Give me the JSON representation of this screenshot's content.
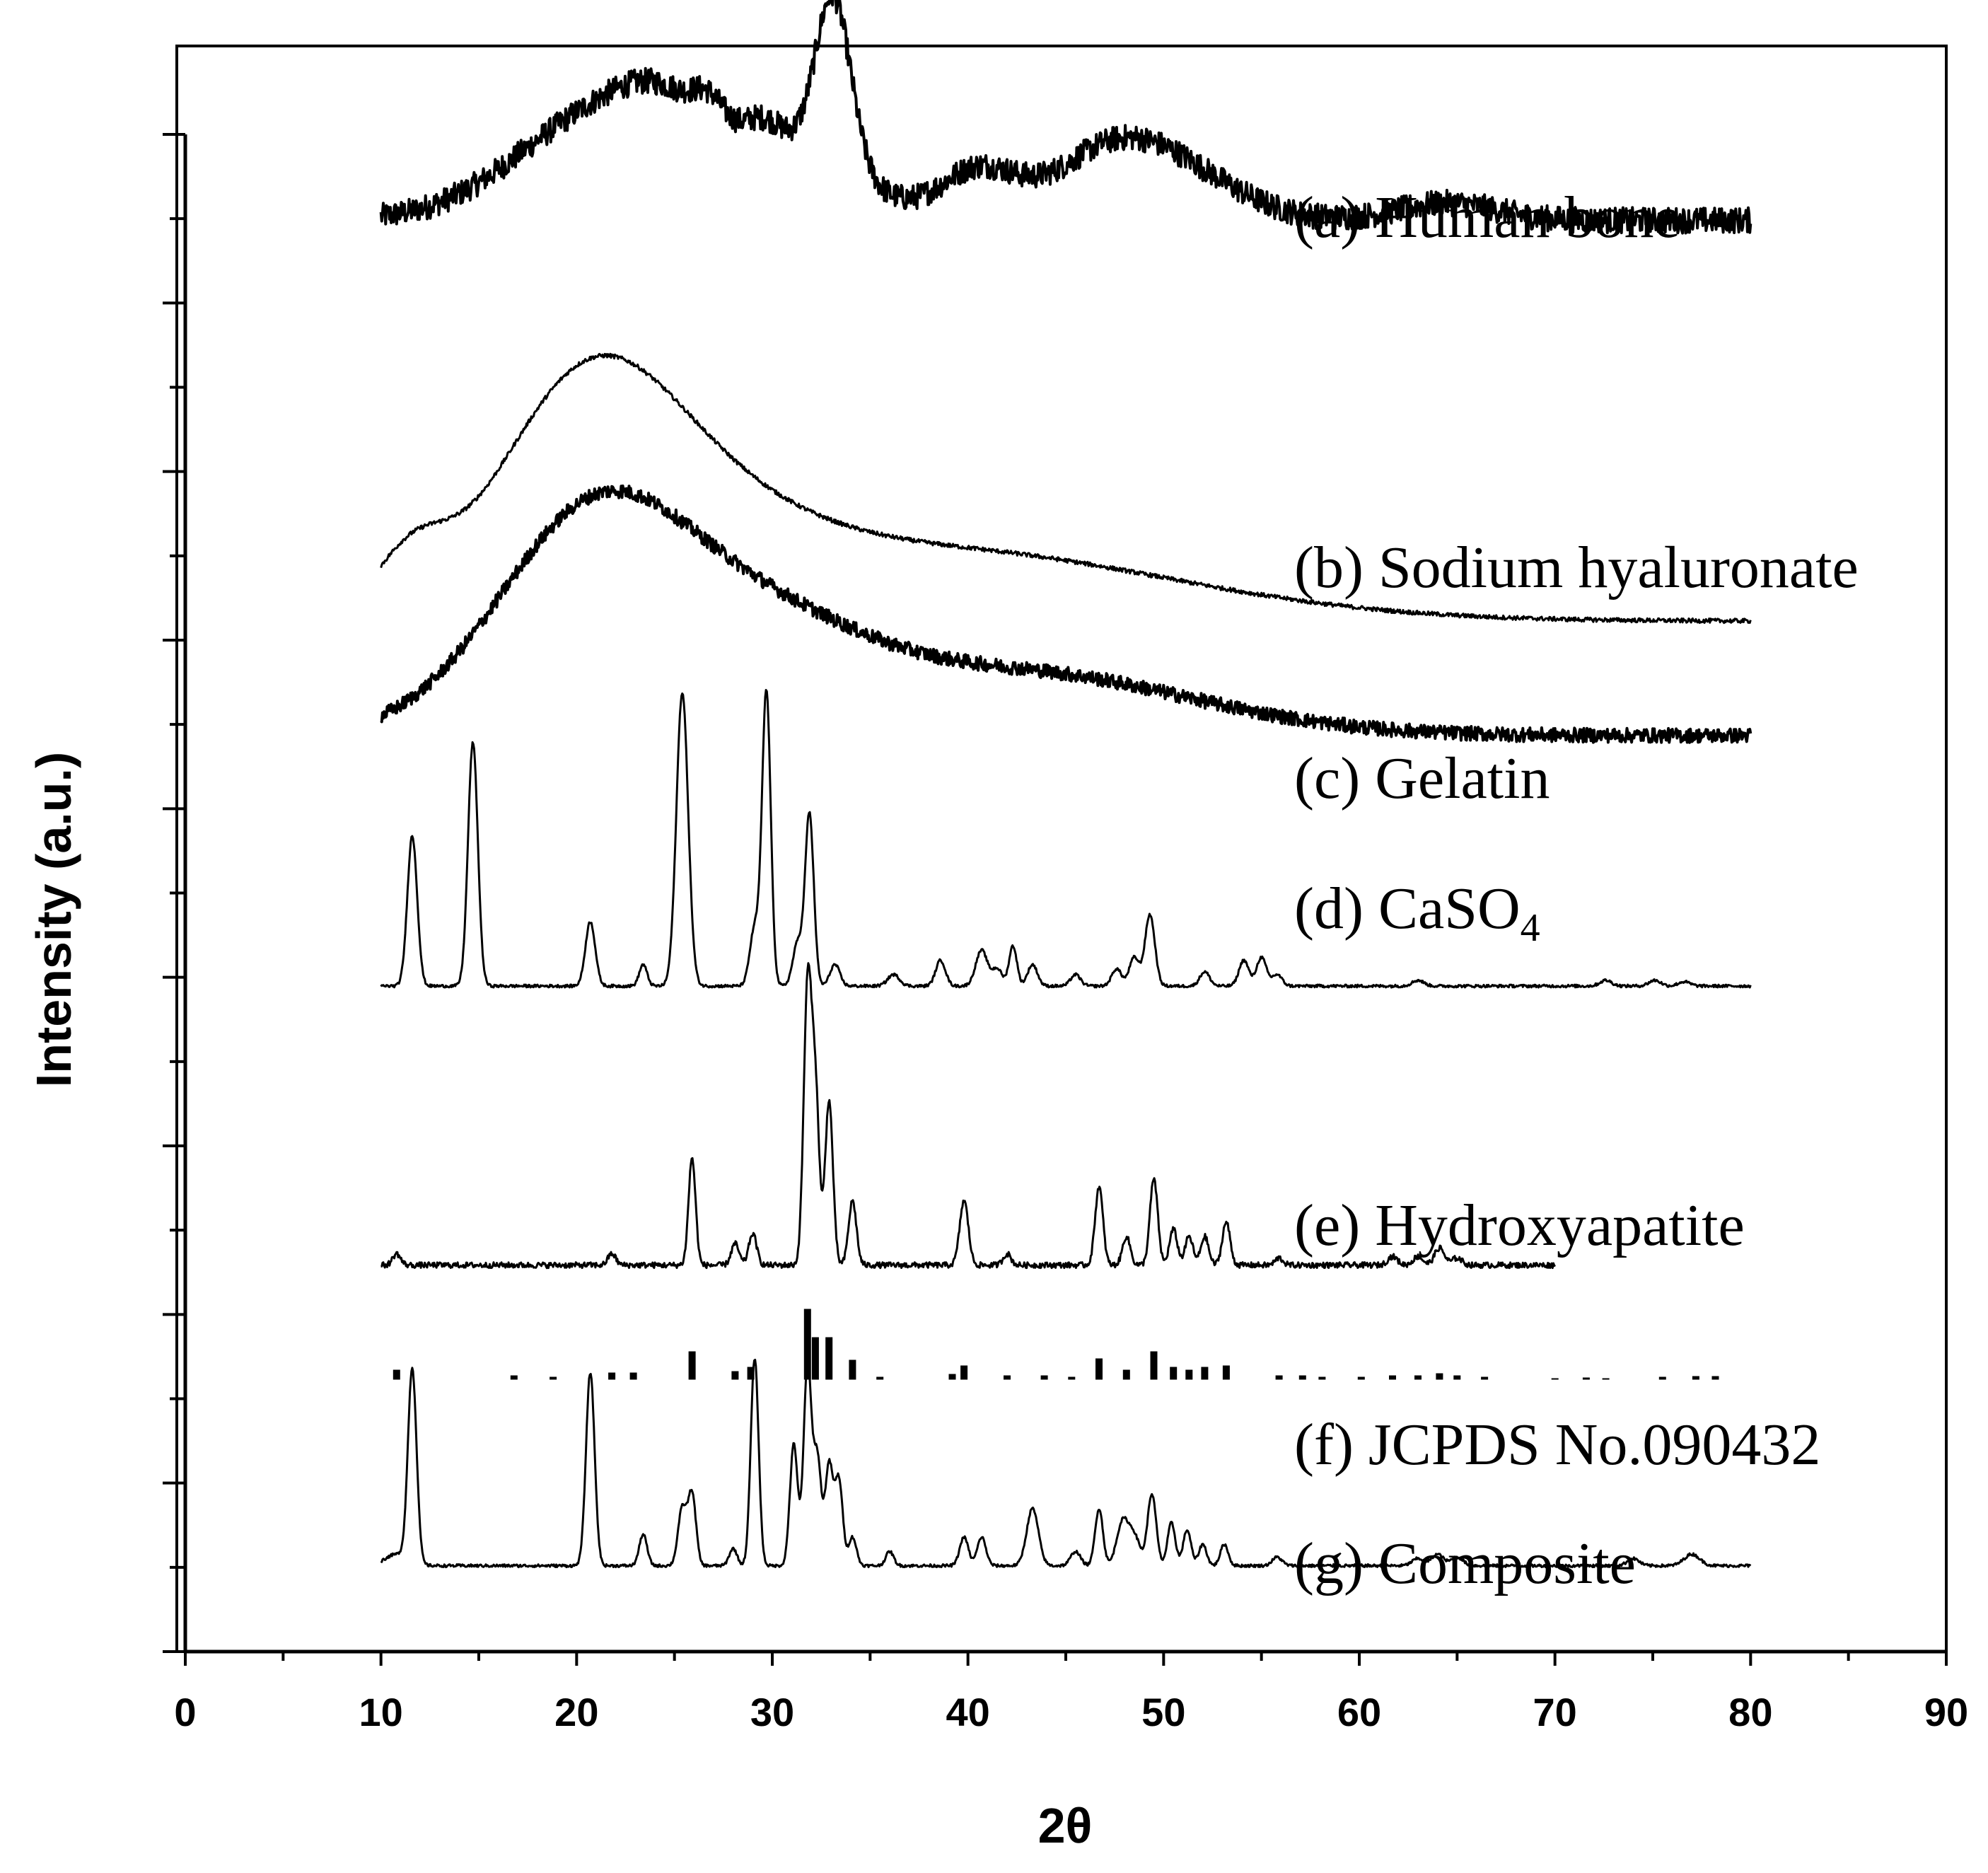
{
  "chart_data": {
    "type": "line",
    "title": "",
    "xlabel": "2θ",
    "ylabel": "Intensity (a.u.)",
    "xlim": [
      0,
      90
    ],
    "x_ticks": [
      "0",
      "10",
      "20",
      "30",
      "40",
      "50",
      "60",
      "70",
      "80",
      "90"
    ],
    "y_ticks_labeled": false,
    "grid": false,
    "series": [
      {
        "name": "(a) Human bone",
        "label_text": "(a) Human bone",
        "x_range": [
          10,
          80
        ],
        "baseline": 6.0,
        "noise": 0.09,
        "peaks": [
          [
            21.5,
            0.75,
            4.5
          ],
          [
            25,
            0.35,
            2.5
          ],
          [
            26.8,
            0.2,
            0.8
          ],
          [
            29.5,
            0.3,
            1.2
          ],
          [
            32.5,
            0.4,
            2.5
          ],
          [
            33.1,
            1.15,
            0.9
          ],
          [
            40.5,
            0.35,
            2.0
          ],
          [
            46.5,
            0.2,
            2.5
          ],
          [
            49.5,
            0.45,
            3.5
          ],
          [
            64.5,
            0.12,
            2.5
          ]
        ]
      },
      {
        "name": "(b) Sodium hyaluronate",
        "label_text": "(b) Sodium hyaluronate",
        "x_range": [
          10,
          80
        ],
        "baseline": 3.2,
        "noise": 0.015,
        "peaks": [
          [
            11.5,
            0.35,
            1.8
          ],
          [
            20.3,
            1.35,
            4.5
          ],
          [
            26,
            0.5,
            5.5
          ],
          [
            38,
            0.5,
            12
          ]
        ]
      },
      {
        "name": "(c) Gelatin",
        "label_text": "(c) Gelatin",
        "x_range": [
          10,
          80
        ],
        "baseline": 2.4,
        "noise": 0.05,
        "peaks": [
          [
            21,
            1.55,
            5.0
          ],
          [
            30,
            0.55,
            5.0
          ],
          [
            42,
            0.45,
            9.0
          ]
        ]
      },
      {
        "name": "(d) CaSO4",
        "label_prefix": "(d) CaSO",
        "label_subscript": "4",
        "x_range": [
          10,
          80
        ],
        "baseline": 0.65,
        "noise": 0.01,
        "peaks": [
          [
            11.6,
            1.05,
            0.25
          ],
          [
            14.7,
            1.7,
            0.25
          ],
          [
            20.7,
            0.45,
            0.25
          ],
          [
            23.4,
            0.15,
            0.2
          ],
          [
            25.4,
            2.05,
            0.3
          ],
          [
            29.1,
            0.4,
            0.25
          ],
          [
            29.7,
            2.05,
            0.22
          ],
          [
            31.3,
            0.3,
            0.25
          ],
          [
            31.9,
            1.2,
            0.22
          ],
          [
            33.2,
            0.15,
            0.25
          ],
          [
            36.2,
            0.08,
            0.3
          ],
          [
            38.6,
            0.18,
            0.25
          ],
          [
            40.7,
            0.25,
            0.3
          ],
          [
            41.5,
            0.12,
            0.25
          ],
          [
            42.3,
            0.28,
            0.2
          ],
          [
            43.3,
            0.15,
            0.25
          ],
          [
            45.5,
            0.08,
            0.25
          ],
          [
            47.6,
            0.12,
            0.25
          ],
          [
            48.5,
            0.2,
            0.25
          ],
          [
            49.3,
            0.5,
            0.25
          ],
          [
            52.1,
            0.1,
            0.25
          ],
          [
            54.1,
            0.18,
            0.25
          ],
          [
            55.0,
            0.2,
            0.25
          ],
          [
            55.8,
            0.08,
            0.25
          ],
          [
            63.0,
            0.04,
            0.3
          ],
          [
            72.6,
            0.04,
            0.3
          ],
          [
            75.1,
            0.04,
            0.3
          ],
          [
            76.6,
            0.03,
            0.3
          ]
        ]
      },
      {
        "name": "(e) Hydroxyapatite",
        "label_text": "(e) Hydroxyapatite",
        "x_range": [
          10,
          70
        ],
        "baseline": -1.3,
        "noise": 0.02,
        "peaks": [
          [
            10.8,
            0.08,
            0.2
          ],
          [
            21.8,
            0.08,
            0.2
          ],
          [
            25.9,
            0.75,
            0.18
          ],
          [
            28.1,
            0.15,
            0.2
          ],
          [
            29.0,
            0.22,
            0.2
          ],
          [
            31.8,
            1.9,
            0.2
          ],
          [
            32.2,
            1.2,
            0.2
          ],
          [
            32.9,
            1.15,
            0.2
          ],
          [
            34.1,
            0.45,
            0.2
          ],
          [
            39.8,
            0.45,
            0.22
          ],
          [
            42.0,
            0.08,
            0.2
          ],
          [
            46.7,
            0.55,
            0.2
          ],
          [
            48.1,
            0.2,
            0.2
          ],
          [
            49.5,
            0.6,
            0.2
          ],
          [
            50.5,
            0.25,
            0.2
          ],
          [
            51.3,
            0.2,
            0.2
          ],
          [
            52.1,
            0.2,
            0.2
          ],
          [
            53.2,
            0.3,
            0.2
          ],
          [
            55.9,
            0.05,
            0.2
          ],
          [
            61.7,
            0.06,
            0.25
          ],
          [
            63.0,
            0.06,
            0.25
          ],
          [
            64.1,
            0.12,
            0.25
          ],
          [
            65.0,
            0.05,
            0.25
          ]
        ]
      },
      {
        "name": "(g) Composite",
        "label_text": "(g) Composite",
        "x_range": [
          10,
          80
        ],
        "baseline": -3.4,
        "noise": 0.01,
        "peaks": [
          [
            10.8,
            0.08,
            0.6
          ],
          [
            11.6,
            1.35,
            0.22
          ],
          [
            20.7,
            1.35,
            0.22
          ],
          [
            23.4,
            0.22,
            0.2
          ],
          [
            25.4,
            0.4,
            0.22
          ],
          [
            25.9,
            0.5,
            0.2
          ],
          [
            28.0,
            0.12,
            0.2
          ],
          [
            29.1,
            1.45,
            0.2
          ],
          [
            31.1,
            0.85,
            0.2
          ],
          [
            31.8,
            1.4,
            0.2
          ],
          [
            32.3,
            0.75,
            0.2
          ],
          [
            32.9,
            0.7,
            0.2
          ],
          [
            33.4,
            0.6,
            0.2
          ],
          [
            34.1,
            0.2,
            0.2
          ],
          [
            36.0,
            0.1,
            0.2
          ],
          [
            39.8,
            0.2,
            0.22
          ],
          [
            40.7,
            0.2,
            0.22
          ],
          [
            43.3,
            0.4,
            0.3
          ],
          [
            45.5,
            0.1,
            0.25
          ],
          [
            46.7,
            0.4,
            0.2
          ],
          [
            47.9,
            0.3,
            0.3
          ],
          [
            48.5,
            0.2,
            0.3
          ],
          [
            49.4,
            0.5,
            0.22
          ],
          [
            50.4,
            0.3,
            0.2
          ],
          [
            51.2,
            0.25,
            0.2
          ],
          [
            52.0,
            0.15,
            0.2
          ],
          [
            53.1,
            0.15,
            0.2
          ],
          [
            55.8,
            0.06,
            0.25
          ],
          [
            63.0,
            0.05,
            0.3
          ],
          [
            64.0,
            0.08,
            0.3
          ],
          [
            65.0,
            0.06,
            0.3
          ],
          [
            74.0,
            0.05,
            0.3
          ],
          [
            77.0,
            0.08,
            0.4
          ]
        ]
      }
    ],
    "reference": {
      "name": "(f) JCPDS No.090432",
      "label_text": "(f) JCPDS No.090432",
      "baseline": -2.1,
      "sticks": [
        [
          10.8,
          0.14
        ],
        [
          16.8,
          0.06
        ],
        [
          18.8,
          0.04
        ],
        [
          21.8,
          0.1
        ],
        [
          22.9,
          0.1
        ],
        [
          25.9,
          0.4
        ],
        [
          28.1,
          0.12
        ],
        [
          28.9,
          0.18
        ],
        [
          31.8,
          1.0
        ],
        [
          32.2,
          0.6
        ],
        [
          32.9,
          0.6
        ],
        [
          34.1,
          0.28
        ],
        [
          35.5,
          0.04
        ],
        [
          39.2,
          0.08
        ],
        [
          39.8,
          0.2
        ],
        [
          42.0,
          0.06
        ],
        [
          43.9,
          0.06
        ],
        [
          45.3,
          0.04
        ],
        [
          46.7,
          0.3
        ],
        [
          48.1,
          0.14
        ],
        [
          49.5,
          0.4
        ],
        [
          50.5,
          0.18
        ],
        [
          51.3,
          0.14
        ],
        [
          52.1,
          0.18
        ],
        [
          53.2,
          0.2
        ],
        [
          55.9,
          0.06
        ],
        [
          57.1,
          0.06
        ],
        [
          58.1,
          0.04
        ],
        [
          60.1,
          0.04
        ],
        [
          61.7,
          0.06
        ],
        [
          63.0,
          0.06
        ],
        [
          64.1,
          0.09
        ],
        [
          65.0,
          0.06
        ],
        [
          66.4,
          0.04
        ],
        [
          70.0,
          0.02
        ],
        [
          71.6,
          0.03
        ],
        [
          72.6,
          0.02
        ],
        [
          75.5,
          0.04
        ],
        [
          77.2,
          0.05
        ],
        [
          78.2,
          0.05
        ]
      ]
    },
    "y_range_units": [
      -4.0,
      6.6
    ]
  }
}
